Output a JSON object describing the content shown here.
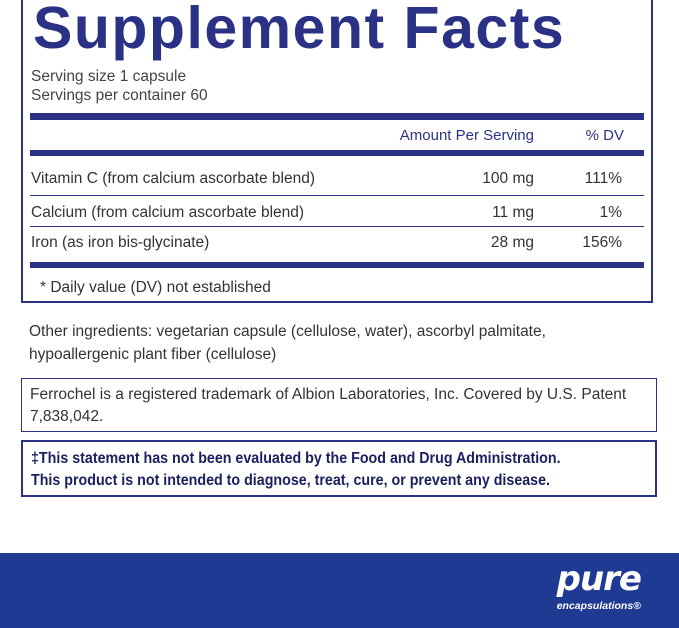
{
  "title": "Supplement Facts",
  "serving_size": "Serving size  1 capsule",
  "servings_per_container": "Servings per container  60",
  "columns": {
    "amount": "Amount Per Serving",
    "dv": "% DV"
  },
  "nutrients": [
    {
      "name": "Vitamin C (from calcium ascorbate blend)",
      "amount": "100 mg",
      "dv": "111%"
    },
    {
      "name": "Calcium (from calcium ascorbate blend)",
      "amount": "11 mg",
      "dv": "1%"
    },
    {
      "name": "Iron (as iron bis-glycinate)",
      "amount": "28 mg",
      "dv": "156%"
    }
  ],
  "footnote": "* Daily value (DV) not established",
  "other_ingredients": "Other ingredients: vegetarian capsule (cellulose, water), ascorbyl palmitate, hypoallergenic plant fiber (cellulose)",
  "trademark": "Ferrochel is a registered trademark of Albion Laboratories, Inc. Covered by U.S. Patent 7,838,042.",
  "fda": {
    "line1": "‡This statement has not been evaluated by the Food and Drug Administration.",
    "line2": "This product is not intended to diagnose, treat, cure, or prevent any disease."
  },
  "brand": {
    "line1": "pure",
    "line2": "encapsulations®"
  },
  "colors": {
    "navy": "#2b3285",
    "band": "#1f3a93"
  }
}
